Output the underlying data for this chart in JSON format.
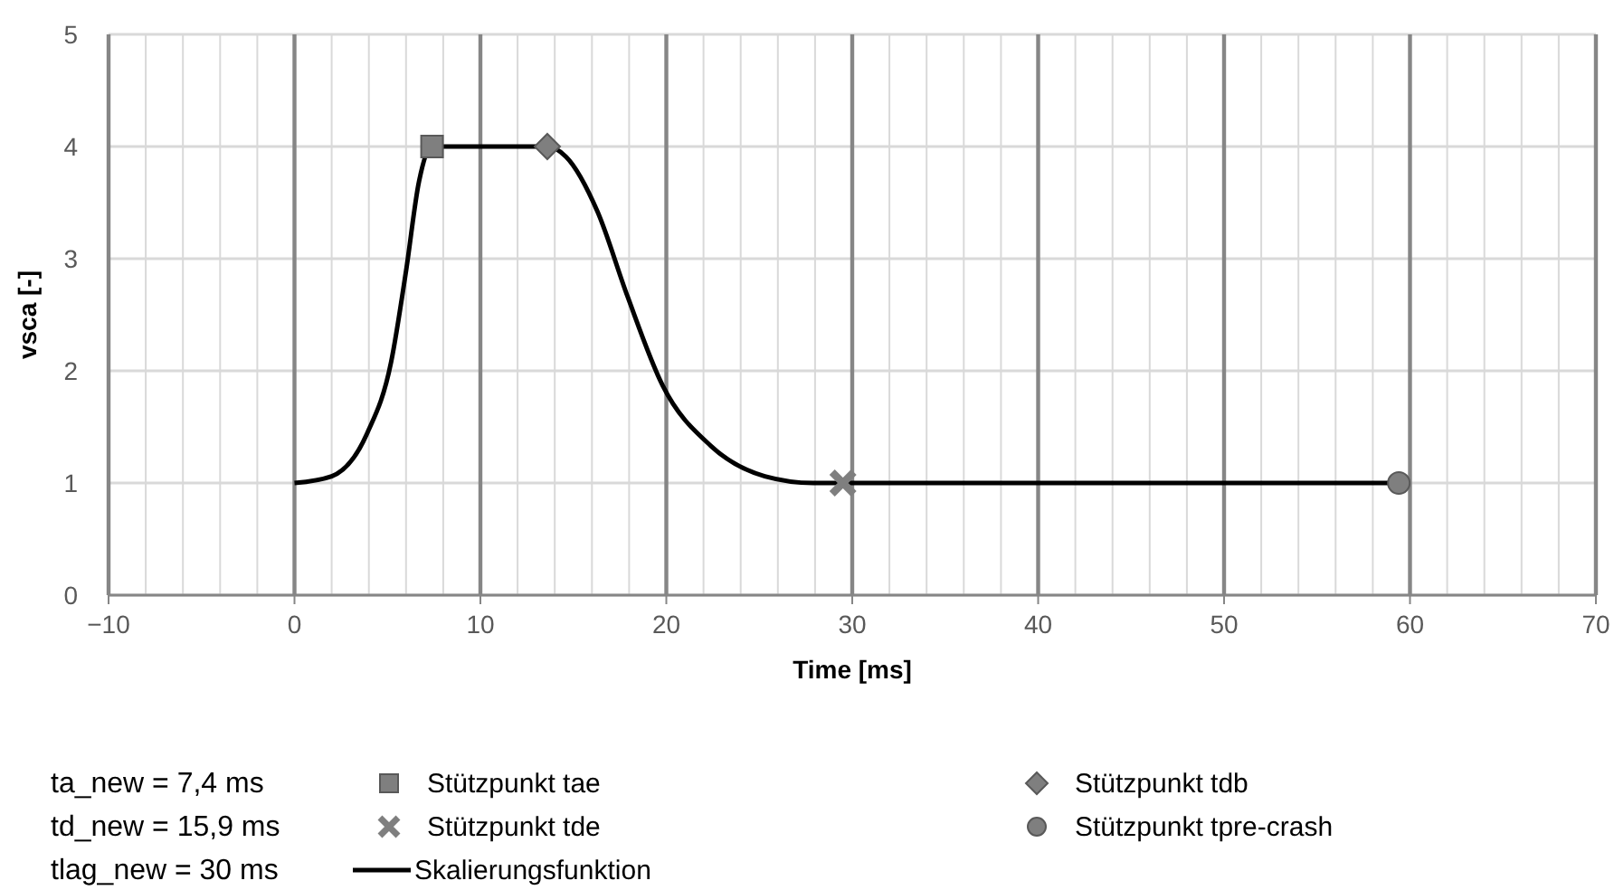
{
  "chart_data": {
    "type": "line",
    "xlabel": "Time [ms]",
    "ylabel": "vsca [-]",
    "xlim": [
      -10,
      70
    ],
    "ylim": [
      0,
      5
    ],
    "xticks": [
      -10,
      {
        "value": -8,
        "label": null
      },
      {
        "value": -6,
        "label": null
      },
      {
        "value": -4,
        "label": null
      },
      {
        "value": -2,
        "label": null
      },
      0,
      {
        "value": 2,
        "label": null
      },
      {
        "value": 4,
        "label": null
      },
      {
        "value": 6,
        "label": null
      },
      {
        "value": 8,
        "label": null
      },
      10,
      {
        "value": 12,
        "label": null
      },
      {
        "value": 14,
        "label": null
      },
      {
        "value": 16,
        "label": null
      },
      {
        "value": 18,
        "label": null
      },
      20,
      {
        "value": 22,
        "label": null
      },
      {
        "value": 24,
        "label": null
      },
      {
        "value": 26,
        "label": null
      },
      {
        "value": 28,
        "label": null
      },
      30,
      {
        "value": 32,
        "label": null
      },
      {
        "value": 34,
        "label": null
      },
      {
        "value": 36,
        "label": null
      },
      {
        "value": 38,
        "label": null
      },
      40,
      {
        "value": 42,
        "label": null
      },
      {
        "value": 44,
        "label": null
      },
      {
        "value": 46,
        "label": null
      },
      {
        "value": 48,
        "label": null
      },
      50,
      {
        "value": 52,
        "label": null
      },
      {
        "value": 54,
        "label": null
      },
      {
        "value": 56,
        "label": null
      },
      {
        "value": 58,
        "label": null
      },
      60,
      {
        "value": 62,
        "label": null
      },
      {
        "value": 64,
        "label": null
      },
      {
        "value": 66,
        "label": null
      },
      {
        "value": 68,
        "label": null
      },
      70
    ],
    "yticks": [
      0,
      1,
      2,
      3,
      4,
      5
    ],
    "grid": true,
    "legend": "bottom",
    "series": [
      {
        "name": "Stützpunkt tae",
        "type": "scatter",
        "marker": "square",
        "color": "#7f7f7f",
        "x": [
          7.4
        ],
        "values": [
          4
        ]
      },
      {
        "name": "Stützpunkt tdb",
        "type": "scatter",
        "marker": "diamond",
        "color": "#7f7f7f",
        "x": [
          13.6
        ],
        "values": [
          4
        ]
      },
      {
        "name": "Stützpunkt tde",
        "type": "scatter",
        "marker": "cross",
        "color": "#7f7f7f",
        "x": [
          29.5
        ],
        "values": [
          1
        ]
      },
      {
        "name": "Stützpunkt tpre-crash",
        "type": "scatter",
        "marker": "circle",
        "color": "#7f7f7f",
        "x": [
          59.4
        ],
        "values": [
          1
        ]
      },
      {
        "name": "Skalierungsfunktion",
        "marker": "none",
        "line_style": "solid",
        "color": "#000000",
        "x": [
          0,
          2,
          3.9,
          5.2,
          6,
          6.7,
          7.4,
          13.6,
          14.6,
          16.3,
          17.9,
          19.8,
          22.4,
          25.3,
          27.9,
          29.5,
          59.4
        ],
        "values": [
          1,
          1.06,
          1.44,
          2.08,
          2.89,
          3.69,
          4,
          4,
          3.91,
          3.42,
          2.67,
          1.87,
          1.33,
          1.06,
          1,
          1,
          1
        ]
      }
    ],
    "annotations": [
      "ta_new = 7,4 ms",
      "td_new = 15,9 ms",
      "tlag_new = 30 ms"
    ]
  }
}
